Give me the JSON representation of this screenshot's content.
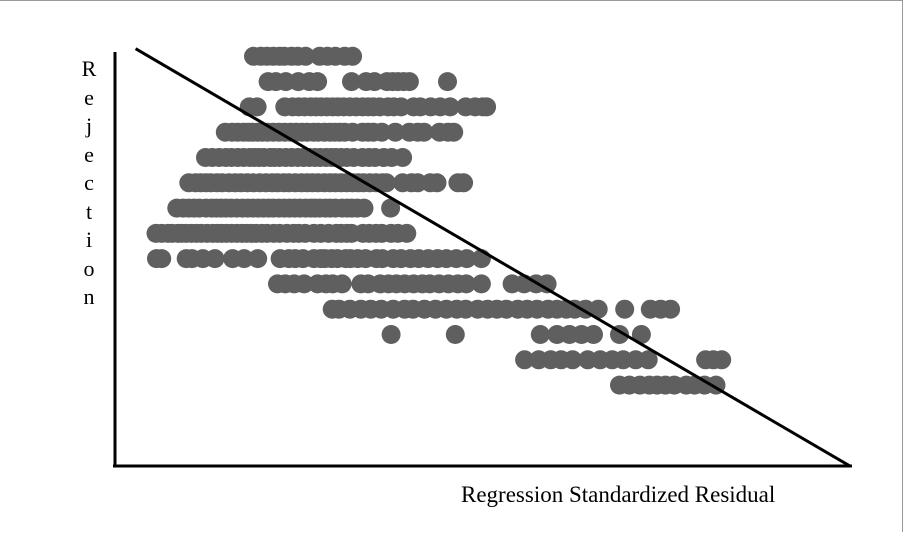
{
  "chart_data": {
    "type": "scatter",
    "title": "",
    "xlabel": "Regression Standardized Residual",
    "ylabel": "Rejection",
    "ylabel_orientation": "vertical-stacked-letters",
    "grid": false,
    "legend": "none",
    "colors": {
      "points": "#5f5f5f",
      "trend_line": "#000000",
      "axes": "#000000"
    },
    "point_rows": [
      {
        "y": 11,
        "x": [
          20.6,
          22,
          23.2,
          24.4,
          25.6,
          26.5,
          27.9,
          29.1,
          30.6,
          33.3,
          34.8,
          36.3,
          38.1,
          39.6
        ]
      },
      {
        "y": 10,
        "x": [
          23.4,
          24.9,
          26.8,
          29.2,
          31.3,
          32.9,
          39.4,
          42.2,
          43.8,
          46.2,
          47.3,
          48.3,
          49.4,
          50.5,
          57.8
        ]
      },
      {
        "y": 9,
        "x": [
          19.8,
          21.3,
          26.6,
          28.1,
          29.3,
          30.4,
          31.6,
          32.6,
          33.6,
          34.7,
          35.8,
          36.8,
          37.9,
          39.1,
          40.3,
          41.5,
          42.6,
          43.6,
          44.8,
          46.4,
          47.5,
          48.9,
          51.3,
          52.6,
          54.6,
          56.4,
          58.3,
          61.3,
          63.1,
          64.6,
          65.3
        ]
      },
      {
        "y": 8,
        "x": [
          15.2,
          16.5,
          17.6,
          18.7,
          19.6,
          20.4,
          21.4,
          22.3,
          23.3,
          24.4,
          25.5,
          26.6,
          27.7,
          28.8,
          29.9,
          30.9,
          32.1,
          33,
          34.2,
          35.3,
          36.2,
          37.1,
          38.1,
          39.6,
          41.5,
          42.6,
          43.6,
          45.2,
          47.8,
          50.5,
          52.1,
          53.3,
          56.3,
          57.9,
          59
        ]
      },
      {
        "y": 7,
        "x": [
          11.4,
          12.7,
          14,
          15.3,
          16.4,
          17.6,
          18.7,
          19.9,
          20.8,
          21.7,
          22.6,
          23.8,
          24.6,
          25.6,
          26.8,
          27.9,
          29.1,
          30.2,
          31.3,
          32.4,
          33.4,
          34.5,
          35.5,
          36.4,
          37.4,
          38.5,
          39.8,
          41.5,
          42.8,
          43.9,
          45.6,
          47.1,
          49.2
        ]
      },
      {
        "y": 6,
        "x": [
          8.2,
          9.5,
          10.5,
          11.5,
          12.4,
          13.6,
          14.6,
          15.9,
          17.1,
          18.2,
          19.4,
          20.6,
          21.8,
          23,
          24.2,
          25.2,
          26.4,
          27.4,
          28.6,
          29.8,
          30.9,
          31.9,
          33,
          34.2,
          35.3,
          36.3,
          37.4,
          38.5,
          39.6,
          40.7,
          41.7,
          42.9,
          44.1,
          45.3,
          46.1,
          49.2,
          50.9,
          52.1,
          54.5,
          55.8,
          59.8,
          60.9
        ]
      },
      {
        "y": 5,
        "x": [
          5.9,
          7.1,
          8.2,
          9.2,
          10.2,
          11.5,
          12.6,
          13.5,
          14.4,
          15.3,
          16.3,
          17.4,
          18.5,
          19.5,
          20.5,
          21.5,
          22.5,
          23.5,
          24.4,
          25.5,
          26.5,
          27.5,
          28.5,
          29.5,
          30.6,
          31.6,
          32.4,
          33.3,
          34.4,
          35.3,
          36.3,
          37.6,
          38.6,
          39.5,
          40.5,
          41.8,
          46.9
        ]
      },
      {
        "y": 4,
        "x": [
          1.9,
          3,
          4.2,
          5,
          6.1,
          6.8,
          7.7,
          8.7,
          9.7,
          10.6,
          11.7,
          12.8,
          13.7,
          14.5,
          15.4,
          16.4,
          17.4,
          18.4,
          19.3,
          20.2,
          21.1,
          22.2,
          23.2,
          24.5,
          25.6,
          27,
          28.3,
          29.3,
          30.5,
          32.2,
          33.5,
          35,
          36.5,
          37.4,
          38.5,
          39.4,
          41.6,
          42.8,
          44.1,
          45.2,
          47,
          48.3,
          50
        ]
      },
      {
        "y": 3,
        "x": [
          2,
          3,
          7.7,
          8.8,
          10.9,
          13.2,
          16.6,
          18.8,
          21.4,
          25.7,
          27.4,
          28.6,
          30.1,
          32.2,
          33.5,
          34.3,
          35.6,
          36.7,
          38.3,
          39.2,
          40.6,
          42.1,
          44.2,
          45.3,
          47.4,
          48.9,
          50.7,
          52.3,
          54.1,
          55.9,
          57.6,
          59.5,
          61.5,
          64.3
        ]
      },
      {
        "y": 2,
        "x": [
          25.2,
          26.7,
          28.4,
          30.3,
          32.9,
          34.5,
          35.8,
          37.6,
          41.2,
          42.6,
          44.9,
          46.5,
          48,
          49.6,
          51.3,
          53,
          54.4,
          56.2,
          58,
          59.8,
          61.4,
          64.3,
          70.2,
          72.5,
          74.8,
          76.9
        ]
      },
      {
        "y": 1,
        "x": [
          35.7,
          37,
          39.1,
          41.2,
          43.1,
          45.1,
          47.4,
          49.6,
          51.2,
          53.4,
          55.5,
          57.6,
          59.6,
          61.3,
          63.6,
          65.5,
          67.3,
          69.1,
          71.3,
          73.1,
          75,
          77.1,
          78.8,
          80.6,
          82.2,
          84.3,
          86.7,
          91.8,
          96.7,
          98.7,
          100.6
        ]
      },
      {
        "y": 0,
        "x": [
          47,
          59.3,
          75.6,
          78.8,
          81.2,
          83.5,
          85.8,
          90.8,
          95
        ]
      },
      {
        "y": -1,
        "x": [
          72.6,
          75.3,
          77.6,
          79.6,
          81.8,
          84.7,
          87.1,
          89.4,
          91.5,
          93.9,
          96.3,
          107.3,
          108.8,
          110.4
        ]
      },
      {
        "y": -2,
        "x": [
          90.8,
          92.7,
          94.7,
          96.5,
          98,
          99.6,
          101.3,
          103.6,
          105.2,
          107.1,
          109.3
        ]
      }
    ],
    "trend_line": {
      "x": [
        -2,
        135
      ],
      "y": [
        11.3,
        -5.2
      ]
    },
    "x_range": [
      -5,
      135
    ],
    "y_range": [
      -5,
      12
    ]
  }
}
